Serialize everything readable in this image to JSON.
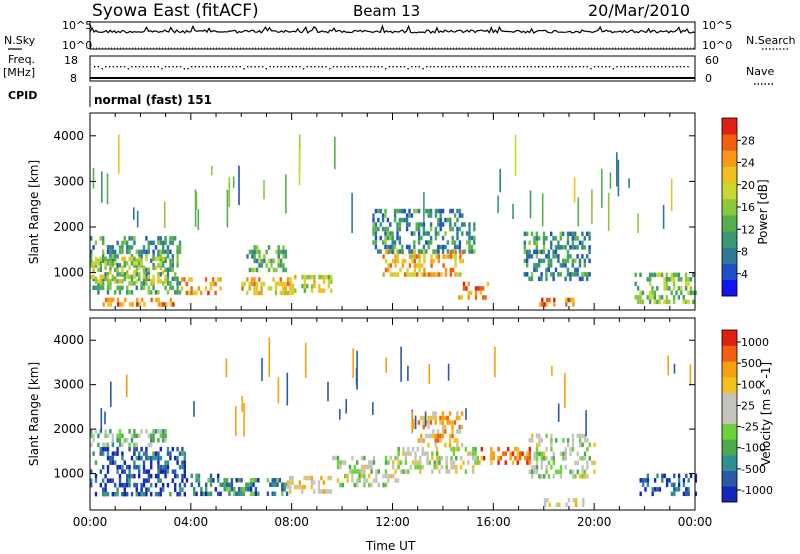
{
  "header": {
    "station": "Syowa East (fitACF)",
    "beam": "Beam 13",
    "date": "20/Mar/2010"
  },
  "status_panels": {
    "nsky": {
      "left_label": "N.Sky",
      "right_label": "N.Search",
      "left_ticks": [
        "10^5",
        "10^0"
      ],
      "right_ticks": [
        "10^5",
        "10^0"
      ]
    },
    "freq": {
      "left_label_line1": "Freq.",
      "left_label_line2": "[MHz]",
      "right_label": "Nave",
      "left_ticks": [
        "18",
        "8"
      ],
      "right_ticks": [
        "60",
        "0"
      ]
    },
    "cpid": {
      "label": "CPID",
      "value": "normal (fast) 151"
    }
  },
  "chart_data": [
    {
      "type": "heatmap",
      "name": "power",
      "ylabel": "Slant Range [km]",
      "xlabel": "",
      "ylim": [
        180,
        4500
      ],
      "yticks": [
        "4000",
        "3000",
        "2000",
        "1000"
      ],
      "xlim_hours": [
        0,
        24
      ],
      "colorbar": {
        "label": "Power [dB]",
        "range": [
          0,
          32
        ],
        "ticks": [
          "28",
          "24",
          "20",
          "16",
          "12",
          "8",
          "4"
        ],
        "colors": [
          "#1414f0",
          "#1e50c8",
          "#2e7a96",
          "#3c9870",
          "#54b04c",
          "#8cc83c",
          "#c8d830",
          "#f0c020",
          "#f89818",
          "#f06010",
          "#e02010"
        ]
      },
      "echo_regions": [
        {
          "t0": 0.0,
          "t1": 3.6,
          "r0": 600,
          "r1": 1800,
          "level": 0.35
        },
        {
          "t0": 0.4,
          "t1": 3.4,
          "r0": 300,
          "r1": 450,
          "level": 0.82
        },
        {
          "t0": 0.0,
          "t1": 3.0,
          "r0": 850,
          "r1": 1350,
          "level": 0.55
        },
        {
          "t0": 3.6,
          "t1": 5.2,
          "r0": 600,
          "r1": 900,
          "level": 0.75
        },
        {
          "t0": 6.0,
          "t1": 8.0,
          "r0": 600,
          "r1": 900,
          "level": 0.7
        },
        {
          "t0": 6.2,
          "t1": 7.8,
          "r0": 1100,
          "r1": 1600,
          "level": 0.4
        },
        {
          "t0": 8.0,
          "t1": 9.6,
          "r0": 650,
          "r1": 950,
          "level": 0.6
        },
        {
          "t0": 11.6,
          "t1": 14.8,
          "r0": 1000,
          "r1": 1500,
          "level": 0.7
        },
        {
          "t0": 11.2,
          "t1": 15.2,
          "r0": 1500,
          "r1": 2400,
          "level": 0.3
        },
        {
          "t0": 14.6,
          "t1": 15.8,
          "r0": 500,
          "r1": 800,
          "level": 0.8
        },
        {
          "t0": 17.2,
          "t1": 19.8,
          "r0": 850,
          "r1": 1900,
          "level": 0.3
        },
        {
          "t0": 17.8,
          "t1": 19.6,
          "r0": 300,
          "r1": 450,
          "level": 0.85
        },
        {
          "t0": 21.6,
          "t1": 24.0,
          "r0": 400,
          "r1": 1000,
          "level": 0.45
        }
      ]
    },
    {
      "type": "heatmap",
      "name": "velocity",
      "ylabel": "Slant Range [km]",
      "xlabel": "Time UT",
      "ylim": [
        180,
        4500
      ],
      "yticks": [
        "4000",
        "3000",
        "2000",
        "1000"
      ],
      "xlim_hours": [
        0,
        24
      ],
      "xticks": [
        "00:00",
        "04:00",
        "08:00",
        "12:00",
        "16:00",
        "20:00",
        "00:00"
      ],
      "colorbar": {
        "label": "Velocity [m s^-1]",
        "range": [
          -1000,
          1000
        ],
        "ticks": [
          "1000",
          "500",
          "100",
          "25",
          "-25",
          "-100",
          "-500",
          "-1000"
        ],
        "colors": [
          "#1428b8",
          "#2a5aa8",
          "#2e9090",
          "#4caa4c",
          "#6cd23c",
          "#c4c4bc",
          "#c4c4bc",
          "#f4c01c",
          "#f8a010",
          "#f06010",
          "#e02010"
        ]
      },
      "echo_regions": [
        {
          "t0": 0.0,
          "t1": 3.8,
          "r0": 500,
          "r1": 1600,
          "level": 0.12
        },
        {
          "t0": 0.0,
          "t1": 3.0,
          "r0": 1600,
          "r1": 2000,
          "level": 0.42
        },
        {
          "t0": 3.8,
          "t1": 5.2,
          "r0": 500,
          "r1": 1000,
          "level": 0.2
        },
        {
          "t0": 5.2,
          "t1": 7.8,
          "r0": 500,
          "r1": 900,
          "level": 0.25
        },
        {
          "t0": 7.8,
          "t1": 9.6,
          "r0": 550,
          "r1": 950,
          "level": 0.62
        },
        {
          "t0": 9.6,
          "t1": 12.2,
          "r0": 700,
          "r1": 1400,
          "level": 0.5
        },
        {
          "t0": 12.2,
          "t1": 15.4,
          "r0": 1000,
          "r1": 1600,
          "level": 0.5
        },
        {
          "t0": 13.0,
          "t1": 14.8,
          "r0": 1600,
          "r1": 2400,
          "level": 0.72
        },
        {
          "t0": 15.4,
          "t1": 17.4,
          "r0": 1200,
          "r1": 1600,
          "level": 0.85
        },
        {
          "t0": 17.4,
          "t1": 20.0,
          "r0": 900,
          "r1": 1900,
          "level": 0.5
        },
        {
          "t0": 18.0,
          "t1": 19.8,
          "r0": 300,
          "r1": 450,
          "level": 0.65
        },
        {
          "t0": 21.8,
          "t1": 24.0,
          "r0": 500,
          "r1": 1000,
          "level": 0.1
        }
      ]
    }
  ],
  "colors": {
    "frame": "#000000",
    "background": "#ffffff"
  }
}
